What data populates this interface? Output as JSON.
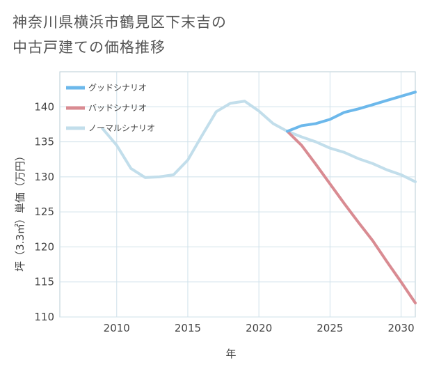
{
  "chart_data": {
    "type": "line",
    "title_lines": [
      "神奈川県横浜市鶴見区下末吉の",
      "中古戸建ての価格推移"
    ],
    "xlabel": "年",
    "ylabel": "坪（3.3㎡）単価（万円）",
    "xlim": [
      2006,
      2031
    ],
    "ylim": [
      110,
      145
    ],
    "x_ticks": [
      2010,
      2015,
      2020,
      2025,
      2030
    ],
    "y_ticks": [
      110,
      115,
      120,
      125,
      130,
      135,
      140
    ],
    "grid": true,
    "legend_position": "top-left",
    "series": [
      {
        "name": "グッドシナリオ",
        "color": "#6cb8eb",
        "x": [
          2022,
          2023,
          2024,
          2025,
          2026,
          2027,
          2028,
          2029,
          2030,
          2031
        ],
        "y": [
          136.5,
          137.3,
          137.6,
          138.2,
          139.2,
          139.7,
          140.3,
          140.9,
          141.5,
          142.1
        ]
      },
      {
        "name": "バッドシナリオ",
        "color": "#d98b92",
        "x": [
          2022,
          2023,
          2024,
          2025,
          2026,
          2027,
          2028,
          2029,
          2030,
          2031
        ],
        "y": [
          136.5,
          134.5,
          131.8,
          129.0,
          126.2,
          123.5,
          120.9,
          117.9,
          115.0,
          112.0
        ]
      },
      {
        "name": "ノーマルシナリオ",
        "color": "#c2deeb",
        "x": [
          2009,
          2010,
          2011,
          2012,
          2013,
          2014,
          2015,
          2016,
          2017,
          2018,
          2019,
          2020,
          2021,
          2022,
          2023,
          2024,
          2025,
          2026,
          2027,
          2028,
          2029,
          2030,
          2031
        ],
        "y": [
          136.9,
          134.5,
          131.2,
          129.9,
          130.0,
          130.3,
          132.4,
          135.9,
          139.3,
          140.5,
          140.8,
          139.4,
          137.6,
          136.5,
          135.7,
          135.0,
          134.1,
          133.5,
          132.6,
          131.9,
          131.0,
          130.3,
          129.3
        ]
      }
    ]
  }
}
